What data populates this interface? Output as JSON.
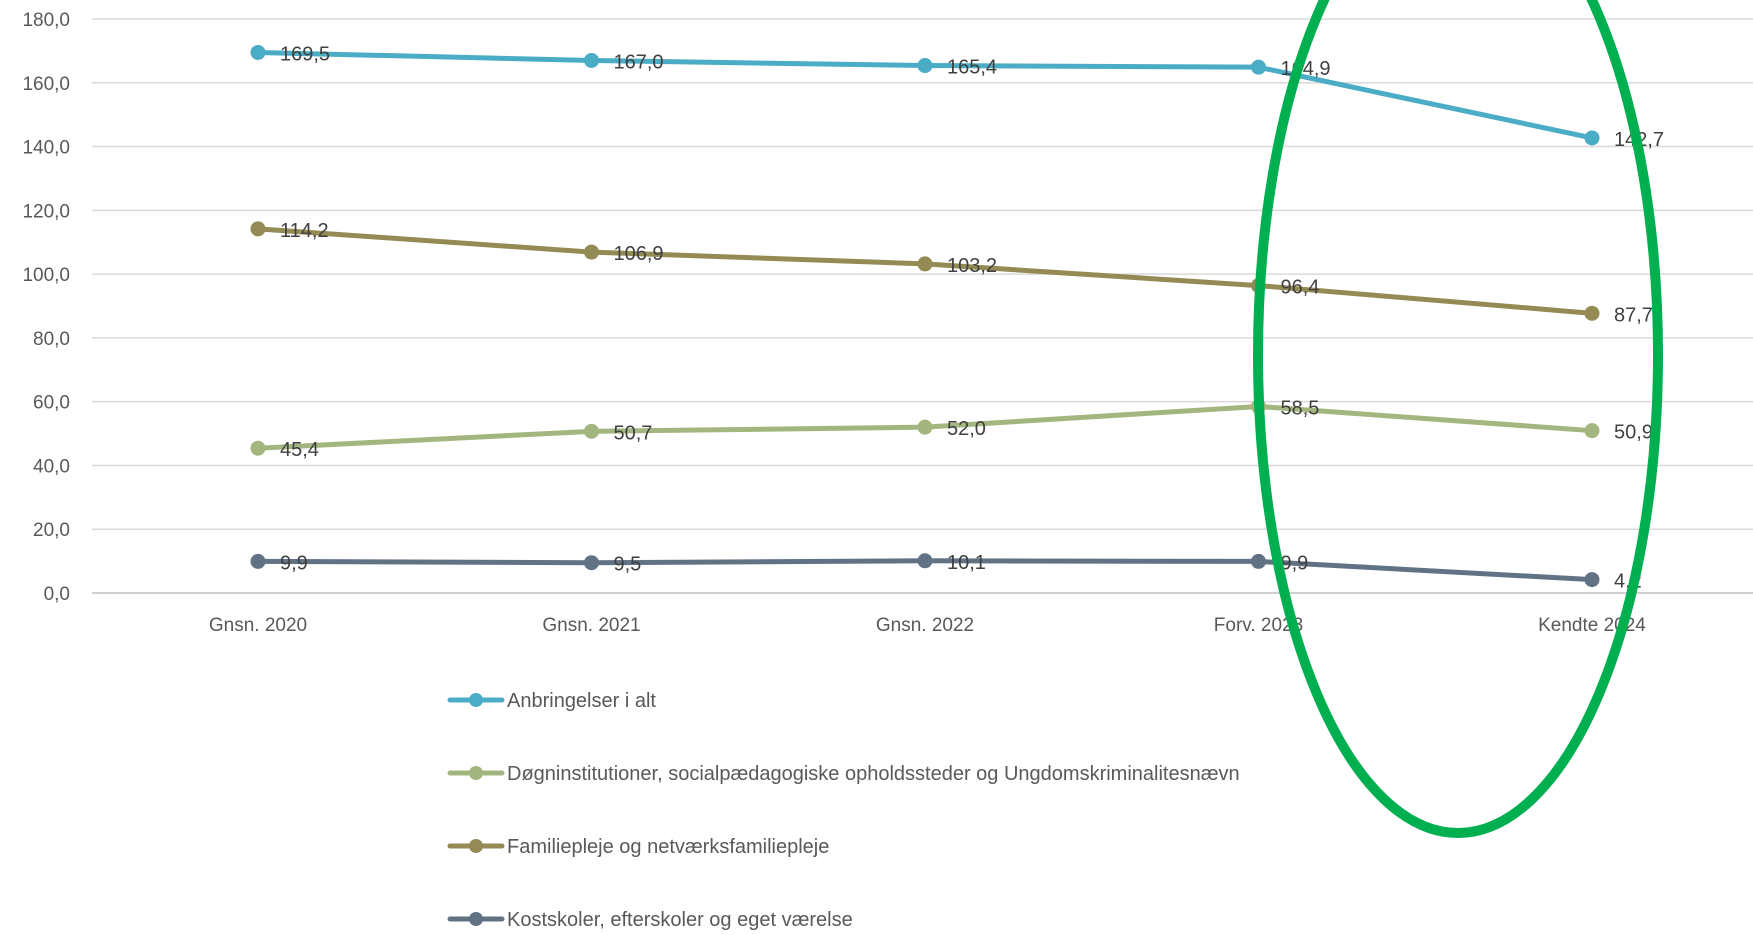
{
  "chart_data": {
    "type": "line",
    "title": "",
    "xlabel": "",
    "ylabel": "",
    "categories": [
      "Gnsn. 2020",
      "Gnsn. 2021",
      "Gnsn. 2022",
      "Forv. 2023",
      "Kendte 2024"
    ],
    "ylim": [
      0,
      180
    ],
    "yticks": [
      "0,0",
      "20,0",
      "40,0",
      "60,0",
      "80,0",
      "100,0",
      "120,0",
      "140,0",
      "160,0",
      "180,0"
    ],
    "grid": true,
    "legend_position": "bottom",
    "series": [
      {
        "name": "Anbringelser i alt",
        "color": "#4BACC6",
        "values": [
          169.5,
          167.0,
          165.4,
          164.9,
          142.7
        ],
        "labels": [
          "169,5",
          "167,0",
          "165,4",
          "164,9",
          "142,7"
        ]
      },
      {
        "name": "Døgninstitutioner, socialpædagogiske opholdssteder og Ungdomskriminalitesnævn",
        "color": "#A4B67F",
        "values": [
          45.4,
          50.7,
          52.0,
          58.5,
          50.9
        ],
        "labels": [
          "45,4",
          "50,7",
          "52,0",
          "58,5",
          "50,9"
        ]
      },
      {
        "name": "Familiepleje og netværksfamiliepleje",
        "color": "#948A54",
        "values": [
          114.2,
          106.9,
          103.2,
          96.4,
          87.7
        ],
        "labels": [
          "114,2",
          "106,9",
          "103,2",
          "96,4",
          "87,7"
        ]
      },
      {
        "name": "Kostskoler, efterskoler og eget værelse",
        "color": "#627285",
        "values": [
          9.9,
          9.5,
          10.1,
          9.9,
          4.2
        ],
        "labels": [
          "9,9",
          "9,5",
          "10,1",
          "9,9",
          "4,2"
        ]
      }
    ],
    "annotations": [
      {
        "type": "ellipse",
        "color": "#00B050",
        "around": "Forv. 2023 – Kendte 2024"
      }
    ]
  }
}
